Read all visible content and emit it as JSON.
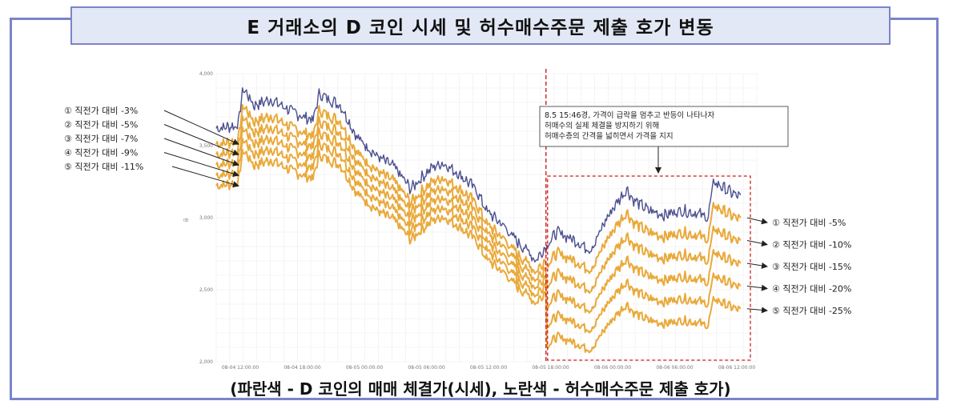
{
  "title": "E 거래소의 D 코인 시세 및 허수매수주문 제출 호가 변동",
  "caption": "(파란색 - D 코인의 매매 체결가(시세), 노란색 - 허수매수주문 제출 호가)",
  "colors": {
    "price_line": "#4b4f8f",
    "order_lines": "#e9a93a",
    "event_marker": "#cc1f1f",
    "frame": "#7b84c9",
    "title_bg": "#e3e8f6"
  },
  "chart_data": {
    "type": "line",
    "y_unit_label": "원",
    "yticks": [
      "2,000",
      "2,500",
      "3,000",
      "3,500",
      "4,000"
    ],
    "ylim": [
      2000,
      4000
    ],
    "xticks": [
      "08-04 12:00:00",
      "08-04 18:00:00",
      "08-05 00:00:00",
      "08-05 06:00:00",
      "08-05 12:00:00",
      "08-05 18:00:00",
      "08-06 00:00:00",
      "08-06 06:00:00",
      "08-06 12:00:00"
    ],
    "grid": true,
    "price_series_points": [
      [
        0.0,
        3620
      ],
      [
        0.04,
        3640
      ],
      [
        0.05,
        3900
      ],
      [
        0.07,
        3780
      ],
      [
        0.1,
        3820
      ],
      [
        0.13,
        3760
      ],
      [
        0.16,
        3700
      ],
      [
        0.18,
        3680
      ],
      [
        0.19,
        3860
      ],
      [
        0.21,
        3820
      ],
      [
        0.23,
        3780
      ],
      [
        0.26,
        3560
      ],
      [
        0.3,
        3420
      ],
      [
        0.33,
        3350
      ],
      [
        0.36,
        3200
      ],
      [
        0.38,
        3280
      ],
      [
        0.4,
        3350
      ],
      [
        0.42,
        3380
      ],
      [
        0.45,
        3300
      ],
      [
        0.48,
        3200
      ],
      [
        0.5,
        3050
      ],
      [
        0.53,
        2950
      ],
      [
        0.56,
        2820
      ],
      [
        0.58,
        2760
      ],
      [
        0.59,
        2700
      ],
      [
        0.61,
        2800
      ],
      [
        0.63,
        2900
      ],
      [
        0.66,
        2850
      ],
      [
        0.69,
        2780
      ],
      [
        0.7,
        2820
      ],
      [
        0.72,
        2980
      ],
      [
        0.74,
        3100
      ],
      [
        0.76,
        3200
      ],
      [
        0.77,
        3130
      ],
      [
        0.8,
        3050
      ],
      [
        0.83,
        3020
      ],
      [
        0.86,
        3050
      ],
      [
        0.89,
        3030
      ],
      [
        0.91,
        3000
      ],
      [
        0.92,
        3250
      ],
      [
        0.95,
        3180
      ],
      [
        0.97,
        3140
      ]
    ],
    "event_split_fraction": 0.61,
    "left_offsets": {
      "labels": [
        "① 직전가 대비 -3%",
        "② 직전가 대비 -5%",
        "③ 직전가 대비 -7%",
        "④ 직전가 대비 -9%",
        "⑤ 직전가 대비 -11%"
      ],
      "pct": [
        -3,
        -5,
        -7,
        -9,
        -11
      ]
    },
    "right_offsets": {
      "labels": [
        "① 직전가 대비 -5%",
        "② 직전가 대비 -10%",
        "③ 직전가 대비 -15%",
        "④ 직전가 대비 -20%",
        "⑤ 직전가 대비 -25%"
      ],
      "pct": [
        -5,
        -10,
        -15,
        -20,
        -25
      ]
    },
    "annotation": [
      "8.5 15:46경, 가격이 급락을 멈추고 반등이 나타나자",
      "허매수의 실제 체결을 방지하기 위해",
      "허매수층의 간격을 넓히면서 가격을 지지"
    ]
  }
}
